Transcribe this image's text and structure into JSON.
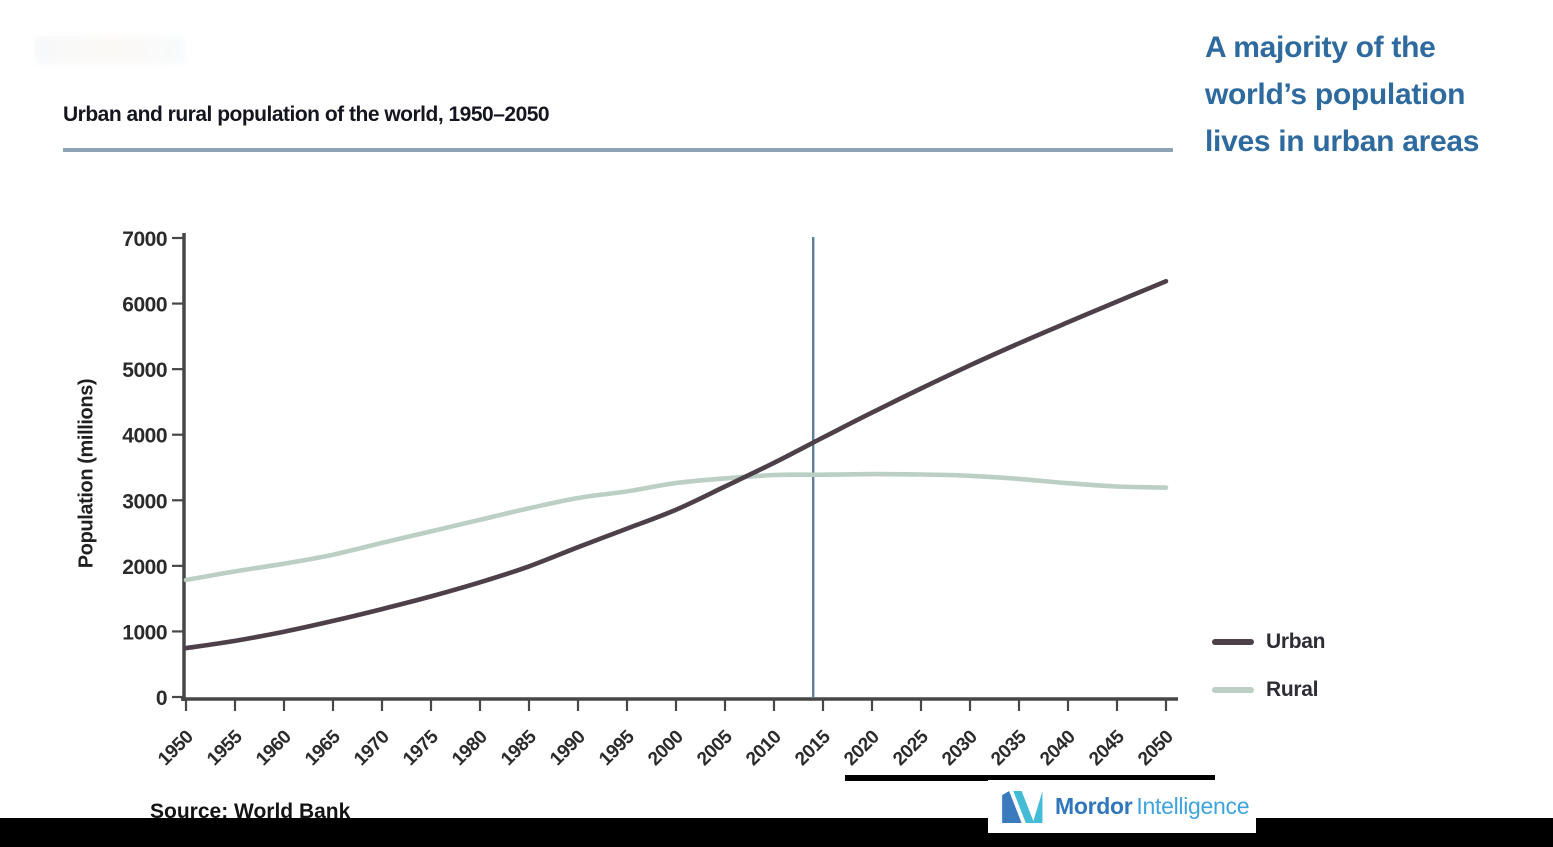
{
  "header": {
    "title": "Urban and rural population of the world, 1950–2050",
    "headline": "A majority of the world’s population lives in urban areas"
  },
  "legend": [
    {
      "label": "Urban",
      "color": "#4d4049"
    },
    {
      "label": "Rural",
      "color": "#bccfc5"
    }
  ],
  "source_note": "Source: World Bank",
  "brand": {
    "name_primary": "Mordor",
    "name_secondary": "Intelligence"
  },
  "chart_data": {
    "type": "line",
    "title": "Urban and rural population of the world, 1950–2050",
    "xlabel": "",
    "ylabel": "Population (millions)",
    "x": [
      1950,
      1955,
      1960,
      1965,
      1970,
      1975,
      1980,
      1985,
      1990,
      1995,
      2000,
      2005,
      2010,
      2015,
      2020,
      2025,
      2030,
      2035,
      2040,
      2045,
      2050
    ],
    "series": [
      {
        "name": "Urban",
        "color": "#4d4049",
        "values": [
          746,
          856,
          996,
          1160,
          1340,
          1534,
          1749,
          1992,
          2285,
          2568,
          2856,
          3210,
          3571,
          3957,
          4338,
          4705,
          5058,
          5394,
          5715,
          6030,
          6339
        ]
      },
      {
        "name": "Rural",
        "color": "#bccfc5",
        "values": [
          1784,
          1916,
          2033,
          2170,
          2350,
          2526,
          2703,
          2878,
          3035,
          3135,
          3263,
          3334,
          3385,
          3390,
          3399,
          3394,
          3374,
          3326,
          3260,
          3211,
          3193
        ]
      }
    ],
    "ylim": [
      0,
      7000
    ],
    "yticks": [
      0,
      1000,
      2000,
      3000,
      4000,
      5000,
      6000,
      7000
    ],
    "grid": false,
    "legend_position": "right",
    "annotation_line": {
      "x": 2014,
      "color": "#5d7f96"
    }
  }
}
